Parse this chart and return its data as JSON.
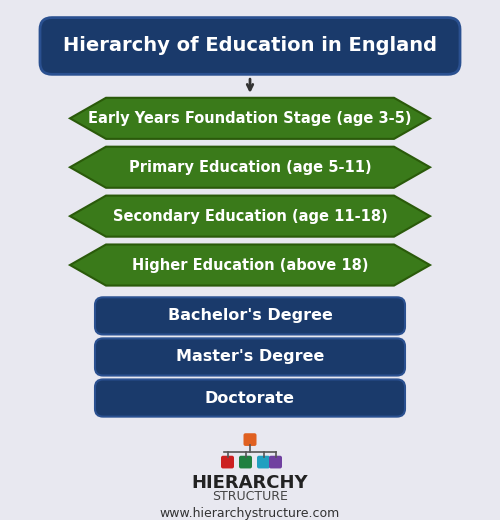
{
  "title": "Hierarchy of Education in England",
  "title_bg": "#1a3a6b",
  "title_text_color": "#ffffff",
  "diamond_items": [
    "Early Years Foundation Stage (age 3-5)",
    "Primary Education (age 5-11)",
    "Secondary Education (age 11-18)",
    "Higher Education (above 18)"
  ],
  "diamond_color": "#3a7a1a",
  "diamond_text_color": "#ffffff",
  "rect_items": [
    "Bachelor's Degree",
    "Master's Degree",
    "Doctorate"
  ],
  "rect_color": "#1a3a6b",
  "rect_text_color": "#ffffff",
  "bg_color": "#e8e8f0",
  "logo_text1": "HIERARCHY",
  "logo_text2": "STRUCTURE",
  "website": "www.hierarchystructure.com",
  "logo_colors": [
    "#e06020",
    "#cc2020",
    "#208040",
    "#20a0c0",
    "#7040a0"
  ],
  "logo_orange": "#e06020"
}
